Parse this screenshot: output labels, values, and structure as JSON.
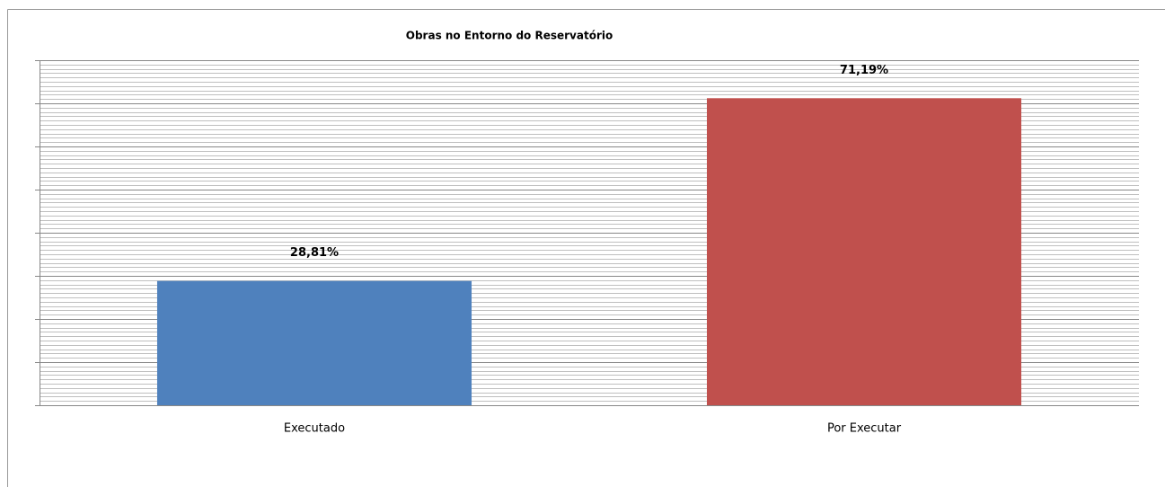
{
  "chart_data": {
    "type": "bar",
    "title": "Obras no Entorno do Reservatório",
    "categories": [
      "Executado",
      "Por Executar"
    ],
    "values": [
      28.81,
      71.19
    ],
    "value_labels": [
      "28,81%",
      "71,19%"
    ],
    "colors": [
      "#4f81bd",
      "#c0504d"
    ],
    "ylim": [
      0,
      80
    ],
    "yticks": [
      0,
      10,
      20,
      30,
      40,
      50,
      60,
      70,
      80
    ],
    "minor_yticks": [
      0,
      1,
      2,
      3,
      4,
      5,
      6,
      7,
      8,
      9,
      10,
      11,
      12,
      13,
      14,
      15,
      16,
      17,
      18,
      19,
      20,
      21,
      22,
      23,
      24,
      25,
      26,
      27,
      28,
      29,
      30,
      31,
      32,
      33,
      34,
      35,
      36,
      37,
      38,
      39,
      40,
      41,
      42,
      43,
      44,
      45,
      46,
      47,
      48,
      49,
      50,
      51,
      52,
      53,
      54,
      55,
      56,
      57,
      58,
      59,
      60,
      61,
      62,
      63,
      64,
      65,
      66,
      67,
      68,
      69,
      70,
      71,
      72,
      73,
      74,
      75,
      76,
      77,
      78,
      79,
      80
    ],
    "grid": true
  }
}
